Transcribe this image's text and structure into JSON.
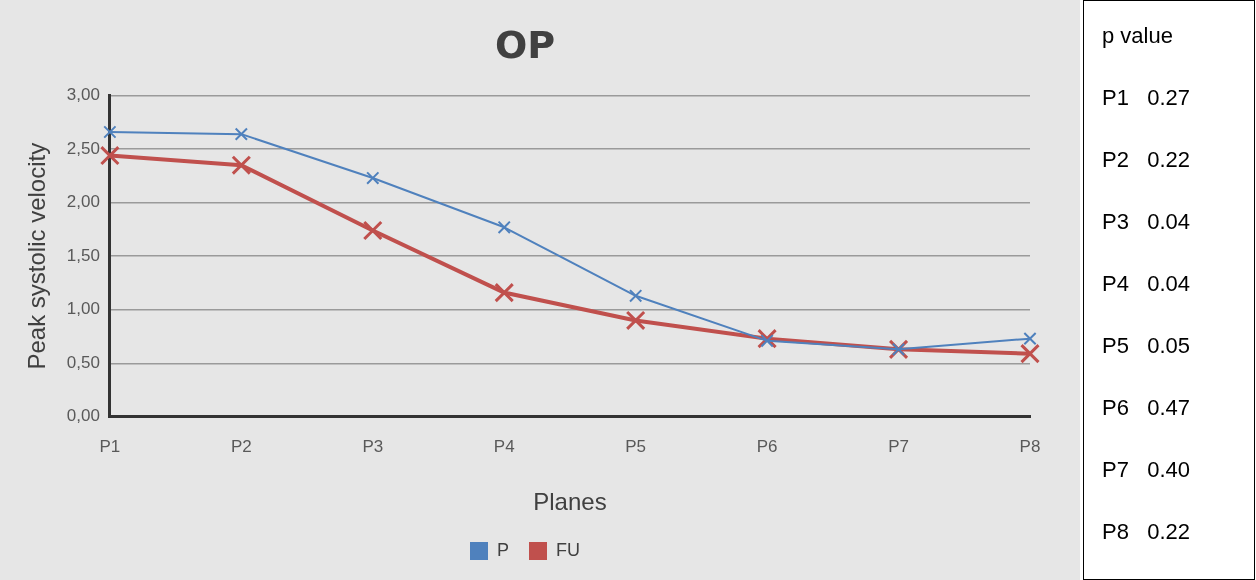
{
  "chart_data": [
    {
      "type": "line",
      "title": "OP",
      "xlabel": "Planes",
      "ylabel": "Peak systolic velocity",
      "categories": [
        "P1",
        "P2",
        "P3",
        "P4",
        "P5",
        "P6",
        "P7",
        "P8"
      ],
      "series": [
        {
          "name": "P",
          "color": "#4f81bd",
          "values": [
            2.66,
            2.64,
            2.23,
            1.77,
            1.13,
            0.71,
            0.63,
            0.73
          ]
        },
        {
          "name": "FU",
          "color": "#c0504d",
          "values": [
            2.44,
            2.35,
            1.74,
            1.16,
            0.9,
            0.73,
            0.63,
            0.59
          ]
        }
      ],
      "ylim": [
        0,
        3
      ],
      "yticks": [
        {
          "value": 0,
          "label": "0,00"
        },
        {
          "value": 0.5,
          "label": "0,50"
        },
        {
          "value": 1,
          "label": "1,00"
        },
        {
          "value": 1.5,
          "label": "1,50"
        },
        {
          "value": 2,
          "label": "2,00"
        },
        {
          "value": 2.5,
          "label": "2,50"
        },
        {
          "value": 3,
          "label": "3,00"
        }
      ],
      "grid": "y",
      "legend": "bottom",
      "marker": "cross",
      "line_style": "solid"
    },
    {
      "type": "other",
      "title": "p value",
      "annotations": [
        "P1   0.27",
        "P2   0.22",
        "P3   0.04",
        "P4   0.04",
        "P5   0.05",
        "P6   0.47",
        "P7   0.40",
        "P8   0.22"
      ]
    }
  ]
}
